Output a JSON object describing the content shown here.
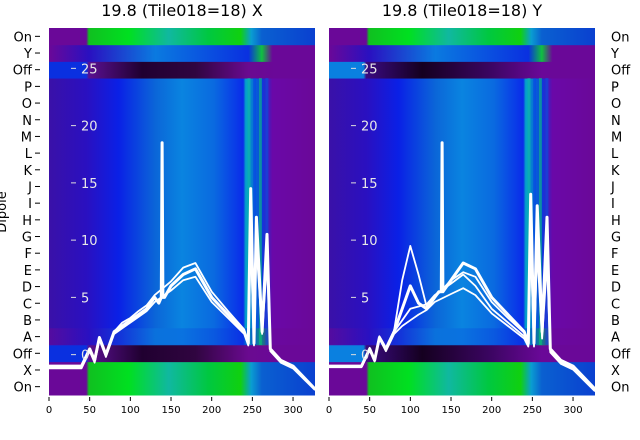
{
  "chart_data": [
    {
      "type": "heatmap",
      "title": "19.8 (Tile018=18) X",
      "xlabel": "",
      "ylabel": "Dipole",
      "xlim": [
        0,
        327
      ],
      "x_ticks": [
        0,
        50,
        100,
        150,
        200,
        250,
        300
      ],
      "row_labels_bottom_to_top": [
        "On",
        "X",
        "Off",
        "A",
        "B",
        "C",
        "D",
        "E",
        "F",
        "G",
        "H",
        "I",
        "J",
        "K",
        "L",
        "M",
        "N",
        "O",
        "P",
        "Off",
        "Y",
        "On"
      ],
      "overlay_ylim": [
        -3,
        28
      ],
      "overlay_ticks": [
        0,
        5,
        10,
        15,
        20,
        25
      ],
      "series": [
        {
          "name": "",
          "x": [
            0,
            40,
            50,
            56,
            62,
            70,
            80,
            90,
            100,
            110,
            120,
            130,
            135,
            138,
            139,
            140,
            142,
            150,
            165,
            180,
            200,
            220,
            240,
            245,
            248,
            252,
            255,
            262,
            268,
            272,
            285,
            300,
            327
          ],
          "y": [
            -1,
            -1,
            0.5,
            -0.5,
            1.5,
            0,
            2,
            2.5,
            3,
            3.5,
            4,
            5,
            4.5,
            5,
            18.5,
            5,
            5,
            6,
            7,
            7.5,
            5,
            3.5,
            2,
            1,
            14.5,
            1,
            12,
            2,
            10.5,
            0.5,
            -0.5,
            -1,
            -3
          ]
        },
        {
          "name": "",
          "x": [
            0,
            40,
            50,
            56,
            62,
            70,
            80,
            90,
            100,
            110,
            120,
            130,
            150,
            165,
            180,
            200,
            220,
            240,
            245,
            248,
            252,
            255,
            262,
            268,
            272,
            285,
            300,
            327
          ],
          "y": [
            -1,
            -1,
            0.5,
            -0.5,
            1.5,
            0,
            2,
            2.8,
            3.2,
            3.8,
            4.3,
            5.2,
            6.4,
            7.6,
            8,
            5.5,
            3.8,
            2.2,
            1,
            12,
            1,
            11,
            2,
            9,
            0.5,
            -0.5,
            -1,
            -3
          ]
        },
        {
          "name": "",
          "x": [
            0,
            40,
            50,
            56,
            62,
            70,
            80,
            90,
            100,
            110,
            120,
            130,
            150,
            165,
            180,
            200,
            220,
            240,
            245,
            248,
            252,
            255,
            262,
            268,
            272,
            285,
            300,
            327
          ],
          "y": [
            -1.2,
            -1.2,
            0.3,
            -0.7,
            1.3,
            -0.2,
            1.8,
            2.3,
            2.8,
            3.3,
            3.8,
            4.6,
            5.6,
            6.5,
            6.8,
            4.6,
            3.2,
            1.8,
            0.8,
            10,
            0.8,
            9.5,
            1.8,
            8,
            0.3,
            -0.7,
            -1.2,
            -3.1
          ]
        }
      ]
    },
    {
      "type": "heatmap",
      "title": "19.8 (Tile018=18) Y",
      "xlabel": "",
      "ylabel": "",
      "xlim": [
        0,
        327
      ],
      "x_ticks": [
        0,
        50,
        100,
        150,
        200,
        250,
        300
      ],
      "row_labels_bottom_to_top": [
        "On",
        "X",
        "Off",
        "A",
        "B",
        "C",
        "D",
        "E",
        "F",
        "G",
        "H",
        "I",
        "J",
        "K",
        "L",
        "M",
        "N",
        "O",
        "P",
        "Off",
        "Y",
        "On"
      ],
      "overlay_ylim": [
        -3,
        28
      ],
      "overlay_ticks": [
        0,
        5,
        10,
        15,
        20,
        25
      ],
      "series": [
        {
          "name": "",
          "x": [
            0,
            40,
            50,
            56,
            62,
            70,
            80,
            90,
            100,
            110,
            120,
            130,
            135,
            138,
            139,
            140,
            150,
            165,
            180,
            200,
            220,
            240,
            245,
            248,
            252,
            256,
            262,
            268,
            272,
            285,
            300,
            327
          ],
          "y": [
            -1,
            -1,
            0.5,
            -0.5,
            1.5,
            0.5,
            2,
            4,
            6,
            4.5,
            4,
            5,
            5.5,
            5.5,
            18.5,
            5.5,
            6.5,
            8,
            7.5,
            5,
            3.5,
            2,
            1,
            14,
            1,
            13,
            2,
            12,
            0.5,
            -0.5,
            -1,
            -3
          ]
        },
        {
          "name": "",
          "x": [
            0,
            40,
            50,
            56,
            62,
            70,
            80,
            90,
            100,
            110,
            120,
            130,
            150,
            165,
            180,
            200,
            220,
            240,
            245,
            248,
            252,
            256,
            262,
            268,
            272,
            285,
            300,
            327
          ],
          "y": [
            -1,
            -1,
            0.5,
            -0.5,
            1.5,
            0.5,
            2,
            3,
            4,
            4.2,
            4.4,
            5.2,
            6.2,
            7,
            6,
            4,
            2.8,
            1.6,
            0.8,
            11,
            0.8,
            10,
            1.6,
            9,
            0.3,
            -0.7,
            -1.2,
            -3.1
          ]
        },
        {
          "name": "",
          "x": [
            0,
            40,
            50,
            56,
            62,
            70,
            80,
            90,
            100,
            110,
            120,
            130,
            150,
            165,
            180,
            200,
            220,
            240,
            245,
            248,
            252,
            256,
            262,
            268,
            272,
            285,
            300,
            327
          ],
          "y": [
            -1.1,
            -1.1,
            0.4,
            -0.6,
            1.4,
            0.3,
            1.8,
            2.5,
            3,
            3.5,
            3.9,
            4.6,
            5.3,
            5.8,
            5.2,
            3.6,
            2.5,
            1.4,
            0.7,
            9.5,
            0.7,
            9,
            1.4,
            8,
            0.2,
            -0.8,
            -1.3,
            -3.2
          ]
        },
        {
          "name": "",
          "x": [
            0,
            40,
            50,
            56,
            62,
            70,
            80,
            90,
            100,
            110,
            120,
            130,
            150,
            165,
            180,
            200,
            220,
            240,
            245,
            248,
            252,
            256,
            262,
            268,
            272,
            285,
            300,
            327
          ],
          "y": [
            -1,
            -1,
            0.6,
            -0.4,
            1.6,
            0.6,
            2.1,
            6.5,
            9.5,
            7,
            4.2,
            5,
            6.5,
            7.2,
            6.8,
            4.6,
            3.2,
            1.9,
            0.9,
            13,
            0.9,
            12,
            1.9,
            10,
            0.4,
            -0.6,
            -1.1,
            -3
          ]
        }
      ]
    }
  ]
}
